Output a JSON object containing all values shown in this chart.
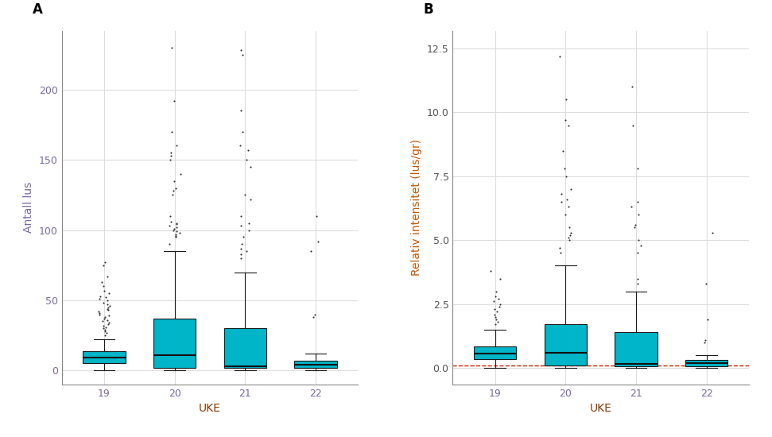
{
  "panel_A": {
    "label": "A",
    "ylabel": "Antall lus",
    "ylabel_color": "#7B68A0",
    "xlabel": "UKE",
    "xlabel_color": "#8B3A00",
    "xlim": [
      0.4,
      4.6
    ],
    "ylim": [
      -10,
      242
    ],
    "yticks": [
      0,
      50,
      100,
      150,
      200
    ],
    "ytick_labels": [
      "0",
      "50",
      "100",
      "150",
      "200"
    ],
    "ytick_color": "#7B68A0",
    "xtick_color": "#7B68A0",
    "boxes": [
      {
        "week": 19,
        "q1": 5,
        "median": 9,
        "q3": 14,
        "whislo": 0,
        "whishi": 22,
        "fliers": [
          25,
          27,
          28,
          29,
          30,
          31,
          32,
          33,
          34,
          35,
          36,
          37,
          38,
          39,
          40,
          41,
          42,
          43,
          44,
          45,
          46,
          47,
          48,
          50,
          51,
          52,
          53,
          55,
          57,
          60,
          63,
          67,
          75,
          77
        ]
      },
      {
        "week": 20,
        "q1": 2,
        "median": 11,
        "q3": 37,
        "whislo": 0,
        "whishi": 85,
        "fliers": [
          90,
          95,
          96,
          97,
          98,
          99,
          100,
          101,
          102,
          103,
          104,
          105,
          106,
          110,
          125,
          128,
          130,
          135,
          140,
          150,
          153,
          155,
          160,
          170,
          192,
          230
        ]
      },
      {
        "week": 21,
        "q1": 2,
        "median": 3,
        "q3": 30,
        "whislo": 0,
        "whishi": 70,
        "fliers": [
          80,
          83,
          85,
          87,
          90,
          95,
          100,
          103,
          105,
          110,
          122,
          125,
          145,
          150,
          157,
          160,
          170,
          185,
          225,
          228
        ]
      },
      {
        "week": 22,
        "q1": 2,
        "median": 4,
        "q3": 7,
        "whislo": 0,
        "whishi": 12,
        "fliers": [
          38,
          40,
          85,
          92,
          110
        ]
      }
    ]
  },
  "panel_B": {
    "label": "B",
    "ylabel": "Relativ intensitet (lus/gr)",
    "ylabel_color": "#CC5500",
    "xlabel": "UKE",
    "xlabel_color": "#8B3A00",
    "xlim": [
      0.4,
      4.6
    ],
    "ylim": [
      -0.65,
      13.2
    ],
    "yticks": [
      0.0,
      2.5,
      5.0,
      7.5,
      10.0,
      12.5
    ],
    "ytick_labels": [
      "0.0",
      "2.5",
      "5.0",
      "7.5",
      "10.0",
      "12.5"
    ],
    "ytick_color": "#555555",
    "xtick_color": "#7B68A0",
    "hline_y": 0.1,
    "hline_color": "#CC2200",
    "hline_style": "--",
    "boxes": [
      {
        "week": 19,
        "q1": 0.35,
        "median": 0.55,
        "q3": 0.85,
        "whislo": 0.0,
        "whishi": 1.5,
        "fliers": [
          1.7,
          1.8,
          1.9,
          2.0,
          2.1,
          2.2,
          2.3,
          2.4,
          2.5,
          2.6,
          2.7,
          2.8,
          3.0,
          3.5,
          3.8
        ]
      },
      {
        "week": 20,
        "q1": 0.1,
        "median": 0.6,
        "q3": 1.7,
        "whislo": 0.0,
        "whishi": 4.0,
        "fliers": [
          4.5,
          4.7,
          5.0,
          5.1,
          5.2,
          5.3,
          5.5,
          6.0,
          6.3,
          6.5,
          6.6,
          6.8,
          7.0,
          7.5,
          7.8,
          8.5,
          9.5,
          9.7,
          10.5,
          12.2
        ]
      },
      {
        "week": 21,
        "q1": 0.05,
        "median": 0.15,
        "q3": 1.4,
        "whislo": 0.0,
        "whishi": 3.0,
        "fliers": [
          3.3,
          3.5,
          4.5,
          4.8,
          5.0,
          5.5,
          5.6,
          6.0,
          6.3,
          6.5,
          7.8,
          9.5,
          11.0
        ]
      },
      {
        "week": 22,
        "q1": 0.05,
        "median": 0.2,
        "q3": 0.3,
        "whislo": 0.0,
        "whishi": 0.5,
        "fliers": [
          1.0,
          1.1,
          1.9,
          3.3,
          5.3
        ]
      }
    ]
  },
  "box_color": "#00B5C8",
  "box_edge_color": "#1a1a1a",
  "box_width": 0.6,
  "median_color": "#111111",
  "whisker_color": "#1a1a1a",
  "flier_size": 2.8,
  "flier_color": "#333333",
  "bg_color": "#FFFFFF",
  "grid_color": "#DDDDDD",
  "font_size_label": 10,
  "font_size_tick": 9,
  "font_size_panel_label": 12
}
